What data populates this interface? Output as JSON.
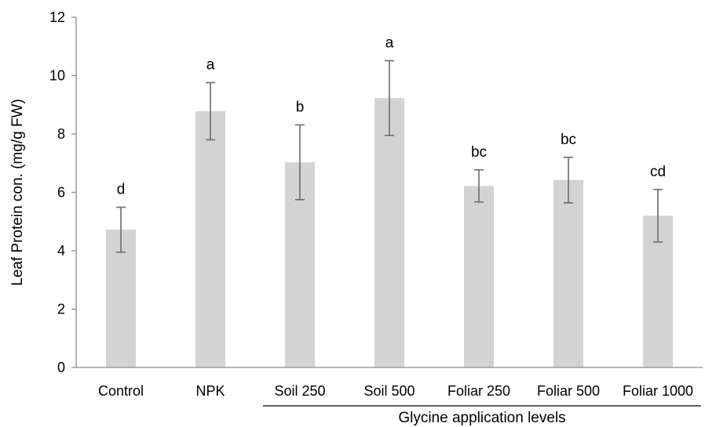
{
  "chart_data": {
    "type": "bar",
    "categories": [
      "Control",
      "NPK",
      "Soil 250",
      "Soil 500",
      "Foliar 250",
      "Foliar 500",
      "Foliar 1000"
    ],
    "series": [
      {
        "values": [
          4.72,
          8.78,
          7.03,
          9.23,
          6.22,
          6.42,
          5.2
        ],
        "errors": [
          0.77,
          0.98,
          1.28,
          1.28,
          0.55,
          0.78,
          0.9
        ],
        "significance": [
          "d",
          "a",
          "b",
          "a",
          "bc",
          "bc",
          "cd"
        ]
      }
    ],
    "ylabel": "Leaf Protein con. (mg/g FW)",
    "xlabel": "",
    "group_label": "Glycine application levels",
    "group_categories": [
      "Soil 250",
      "Soil 500",
      "Foliar 250",
      "Foliar 500",
      "Foliar 1000"
    ],
    "ylim": [
      0,
      12
    ],
    "yticks": [
      0,
      2,
      4,
      6,
      8,
      10,
      12
    ],
    "grid": false,
    "legend": "none",
    "colors": {
      "bar": "#d3d3d3",
      "error_bar": "#6b6b6b",
      "axis": "#8c8c8c"
    }
  }
}
